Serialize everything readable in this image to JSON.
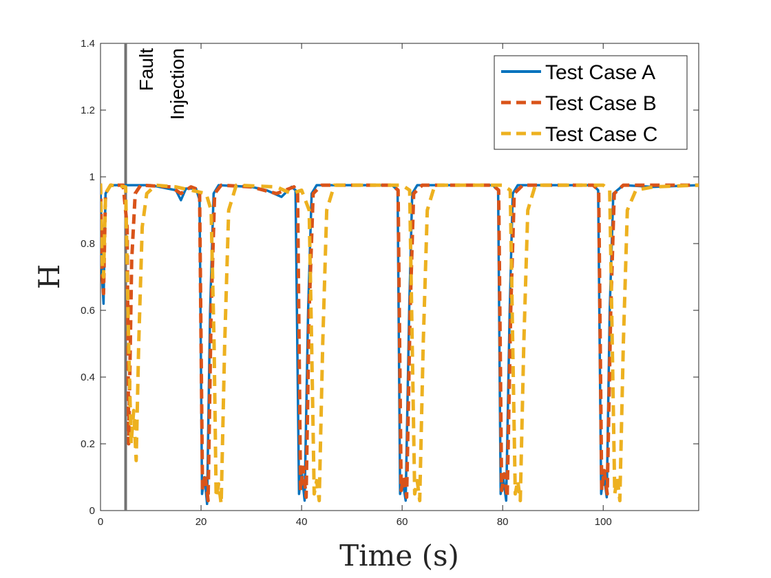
{
  "chart_data": {
    "type": "line",
    "title": "",
    "xlabel": "Time (s)",
    "ylabel": "H",
    "xlim": [
      0,
      119
    ],
    "ylim": [
      0,
      1.4
    ],
    "x_ticks": [
      0,
      20,
      40,
      60,
      80,
      100
    ],
    "x_tick_labels": [
      "0",
      "20",
      "40",
      "60",
      "80",
      "100"
    ],
    "y_ticks": [
      0,
      0.2,
      0.4,
      0.6,
      0.8,
      1,
      1.2,
      1.4
    ],
    "y_tick_labels": [
      "0",
      "0.2",
      "0.4",
      "0.6",
      "0.8",
      "1",
      "1.2",
      "1.4"
    ],
    "grid": false,
    "legend_position": "top-right",
    "annotation": {
      "label_line1": "Fault",
      "label_line2": "Injection",
      "x": 5,
      "color": "#737373"
    },
    "series": [
      {
        "name": "Test Case A",
        "color": "#0072BD",
        "style": "solid",
        "points": [
          [
            0,
            0.98
          ],
          [
            0.3,
            0.7
          ],
          [
            0.6,
            0.62
          ],
          [
            1,
            0.95
          ],
          [
            2,
            0.975
          ],
          [
            5,
            0.975
          ],
          [
            10,
            0.975
          ],
          [
            15,
            0.96
          ],
          [
            16,
            0.93
          ],
          [
            17,
            0.965
          ],
          [
            19,
            0.965
          ],
          [
            19.7,
            0.93
          ],
          [
            20.2,
            0.05
          ],
          [
            20.7,
            0.1
          ],
          [
            21.2,
            0.02
          ],
          [
            21.8,
            0.6
          ],
          [
            22.5,
            0.95
          ],
          [
            23.5,
            0.975
          ],
          [
            30,
            0.97
          ],
          [
            33,
            0.96
          ],
          [
            36,
            0.94
          ],
          [
            38,
            0.97
          ],
          [
            38.8,
            0.96
          ],
          [
            39.5,
            0.05
          ],
          [
            40,
            0.12
          ],
          [
            40.6,
            0.03
          ],
          [
            41.3,
            0.6
          ],
          [
            42,
            0.95
          ],
          [
            43,
            0.975
          ],
          [
            50,
            0.975
          ],
          [
            58,
            0.975
          ],
          [
            59.1,
            0.96
          ],
          [
            59.6,
            0.05
          ],
          [
            60.1,
            0.09
          ],
          [
            60.7,
            0.03
          ],
          [
            61.4,
            0.6
          ],
          [
            62,
            0.95
          ],
          [
            63,
            0.975
          ],
          [
            70,
            0.975
          ],
          [
            78,
            0.975
          ],
          [
            79.1,
            0.96
          ],
          [
            79.6,
            0.05
          ],
          [
            80.1,
            0.1
          ],
          [
            80.7,
            0.03
          ],
          [
            81.4,
            0.6
          ],
          [
            82,
            0.95
          ],
          [
            83,
            0.975
          ],
          [
            90,
            0.975
          ],
          [
            98,
            0.975
          ],
          [
            99,
            0.96
          ],
          [
            99.6,
            0.05
          ],
          [
            100.1,
            0.11
          ],
          [
            100.7,
            0.04
          ],
          [
            101.3,
            0.6
          ],
          [
            102,
            0.95
          ],
          [
            104,
            0.975
          ],
          [
            110,
            0.97
          ],
          [
            119,
            0.975
          ]
        ]
      },
      {
        "name": "Test Case B",
        "color": "#D95319",
        "style": "dashed",
        "points": [
          [
            0,
            0.98
          ],
          [
            0.3,
            0.72
          ],
          [
            0.6,
            0.65
          ],
          [
            1,
            0.95
          ],
          [
            2,
            0.975
          ],
          [
            4.5,
            0.975
          ],
          [
            5.3,
            0.85
          ],
          [
            5.6,
            0.2
          ],
          [
            6.2,
            0.75
          ],
          [
            6.9,
            0.95
          ],
          [
            8,
            0.975
          ],
          [
            14,
            0.97
          ],
          [
            16,
            0.95
          ],
          [
            18,
            0.97
          ],
          [
            19.7,
            0.96
          ],
          [
            20.3,
            0.06
          ],
          [
            20.8,
            0.11
          ],
          [
            21.4,
            0.03
          ],
          [
            22,
            0.6
          ],
          [
            22.7,
            0.95
          ],
          [
            24,
            0.975
          ],
          [
            30,
            0.97
          ],
          [
            35,
            0.95
          ],
          [
            38.5,
            0.97
          ],
          [
            39.2,
            0.95
          ],
          [
            39.8,
            0.06
          ],
          [
            40.3,
            0.13
          ],
          [
            40.9,
            0.04
          ],
          [
            41.5,
            0.6
          ],
          [
            42.3,
            0.95
          ],
          [
            44,
            0.975
          ],
          [
            58,
            0.975
          ],
          [
            59.2,
            0.96
          ],
          [
            59.8,
            0.06
          ],
          [
            60.3,
            0.1
          ],
          [
            60.9,
            0.04
          ],
          [
            61.6,
            0.6
          ],
          [
            62.3,
            0.95
          ],
          [
            64,
            0.975
          ],
          [
            78,
            0.975
          ],
          [
            79.2,
            0.96
          ],
          [
            79.8,
            0.06
          ],
          [
            80.3,
            0.11
          ],
          [
            80.9,
            0.04
          ],
          [
            81.6,
            0.6
          ],
          [
            82.3,
            0.95
          ],
          [
            84,
            0.975
          ],
          [
            98,
            0.975
          ],
          [
            99.1,
            0.96
          ],
          [
            99.7,
            0.06
          ],
          [
            100.2,
            0.12
          ],
          [
            100.8,
            0.05
          ],
          [
            101.5,
            0.6
          ],
          [
            102.2,
            0.95
          ],
          [
            104,
            0.975
          ],
          [
            119,
            0.975
          ]
        ]
      },
      {
        "name": "Test Case C",
        "color": "#EDB120",
        "style": "dashed",
        "points": [
          [
            0,
            0.98
          ],
          [
            0.3,
            0.75
          ],
          [
            0.6,
            0.7
          ],
          [
            1,
            0.95
          ],
          [
            2,
            0.975
          ],
          [
            5,
            0.97
          ],
          [
            5.6,
            0.5
          ],
          [
            6.1,
            0.2
          ],
          [
            6.6,
            0.3
          ],
          [
            7.1,
            0.15
          ],
          [
            7.6,
            0.5
          ],
          [
            8.3,
            0.85
          ],
          [
            9.2,
            0.95
          ],
          [
            11,
            0.975
          ],
          [
            15,
            0.97
          ],
          [
            18,
            0.96
          ],
          [
            21,
            0.95
          ],
          [
            22,
            0.9
          ],
          [
            22.6,
            0.5
          ],
          [
            23,
            0.04
          ],
          [
            23.5,
            0.08
          ],
          [
            24,
            0.02
          ],
          [
            24.7,
            0.5
          ],
          [
            25.5,
            0.9
          ],
          [
            27,
            0.975
          ],
          [
            35,
            0.97
          ],
          [
            38,
            0.95
          ],
          [
            40,
            0.96
          ],
          [
            41.5,
            0.9
          ],
          [
            42,
            0.5
          ],
          [
            42.5,
            0.05
          ],
          [
            43,
            0.09
          ],
          [
            43.5,
            0.03
          ],
          [
            44.2,
            0.5
          ],
          [
            45,
            0.9
          ],
          [
            46.5,
            0.975
          ],
          [
            60,
            0.975
          ],
          [
            61.5,
            0.96
          ],
          [
            62,
            0.5
          ],
          [
            62.5,
            0.05
          ],
          [
            63,
            0.09
          ],
          [
            63.5,
            0.03
          ],
          [
            64.2,
            0.5
          ],
          [
            65,
            0.9
          ],
          [
            66.5,
            0.975
          ],
          [
            80,
            0.975
          ],
          [
            81.5,
            0.96
          ],
          [
            82,
            0.5
          ],
          [
            82.5,
            0.05
          ],
          [
            83,
            0.09
          ],
          [
            83.5,
            0.03
          ],
          [
            84.2,
            0.5
          ],
          [
            85,
            0.9
          ],
          [
            86.5,
            0.975
          ],
          [
            100,
            0.975
          ],
          [
            101.3,
            0.96
          ],
          [
            101.8,
            0.5
          ],
          [
            102.3,
            0.05
          ],
          [
            102.8,
            0.1
          ],
          [
            103.3,
            0.03
          ],
          [
            104,
            0.5
          ],
          [
            104.8,
            0.9
          ],
          [
            106.5,
            0.96
          ],
          [
            110,
            0.97
          ],
          [
            119,
            0.975
          ]
        ]
      }
    ]
  }
}
